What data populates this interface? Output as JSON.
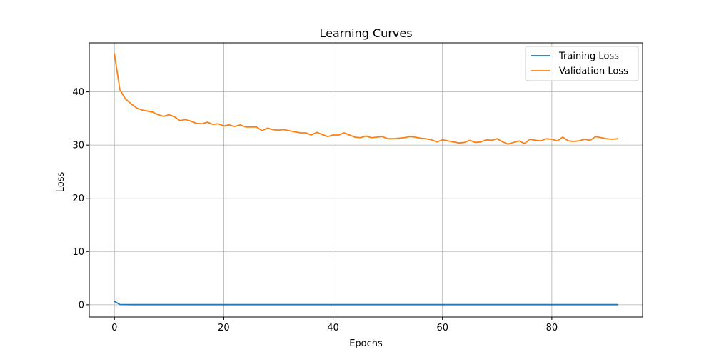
{
  "chart_data": {
    "type": "line",
    "title": "Learning Curves",
    "xlabel": "Epochs",
    "ylabel": "Loss",
    "xlim": [
      -4.6,
      96.6
    ],
    "ylim": [
      -2.3,
      49.2
    ],
    "xticks": [
      0,
      20,
      40,
      60,
      80
    ],
    "yticks": [
      0,
      10,
      20,
      30,
      40
    ],
    "grid": true,
    "legend_position": "top-right",
    "series": [
      {
        "name": "Training Loss",
        "color": "#1f77b4",
        "x": [
          0,
          1,
          2,
          3,
          4,
          5,
          6,
          7,
          8,
          9,
          10,
          11,
          12,
          13,
          14,
          15,
          16,
          17,
          18,
          19,
          20,
          21,
          22,
          23,
          24,
          25,
          26,
          27,
          28,
          29,
          30,
          31,
          32,
          33,
          34,
          35,
          36,
          37,
          38,
          39,
          40,
          41,
          42,
          43,
          44,
          45,
          46,
          47,
          48,
          49,
          50,
          51,
          52,
          53,
          54,
          55,
          56,
          57,
          58,
          59,
          60,
          61,
          62,
          63,
          64,
          65,
          66,
          67,
          68,
          69,
          70,
          71,
          72,
          73,
          74,
          75,
          76,
          77,
          78,
          79,
          80,
          81,
          82,
          83,
          84,
          85,
          86,
          87,
          88,
          89,
          90,
          91,
          92
        ],
        "y": [
          0.65,
          0.05,
          0.03,
          0.02,
          0.02,
          0.02,
          0.02,
          0.02,
          0.02,
          0.02,
          0.02,
          0.02,
          0.02,
          0.02,
          0.02,
          0.02,
          0.02,
          0.02,
          0.02,
          0.02,
          0.02,
          0.02,
          0.02,
          0.02,
          0.02,
          0.02,
          0.02,
          0.02,
          0.02,
          0.02,
          0.02,
          0.02,
          0.02,
          0.02,
          0.02,
          0.02,
          0.02,
          0.02,
          0.02,
          0.02,
          0.02,
          0.02,
          0.02,
          0.02,
          0.02,
          0.02,
          0.02,
          0.02,
          0.02,
          0.02,
          0.02,
          0.02,
          0.02,
          0.02,
          0.02,
          0.02,
          0.02,
          0.02,
          0.02,
          0.02,
          0.02,
          0.02,
          0.02,
          0.02,
          0.02,
          0.02,
          0.02,
          0.02,
          0.02,
          0.02,
          0.02,
          0.02,
          0.02,
          0.02,
          0.02,
          0.02,
          0.02,
          0.02,
          0.02,
          0.02,
          0.02,
          0.02,
          0.02,
          0.02,
          0.02,
          0.02,
          0.02,
          0.02,
          0.02,
          0.02,
          0.02,
          0.02,
          0.02
        ]
      },
      {
        "name": "Validation Loss",
        "color": "#ff7f0e",
        "x": [
          0,
          1,
          2,
          3,
          4,
          5,
          6,
          7,
          8,
          9,
          10,
          11,
          12,
          13,
          14,
          15,
          16,
          17,
          18,
          19,
          20,
          21,
          22,
          23,
          24,
          25,
          26,
          27,
          28,
          29,
          30,
          31,
          32,
          33,
          34,
          35,
          36,
          37,
          38,
          39,
          40,
          41,
          42,
          43,
          44,
          45,
          46,
          47,
          48,
          49,
          50,
          51,
          52,
          53,
          54,
          55,
          56,
          57,
          58,
          59,
          60,
          61,
          62,
          63,
          64,
          65,
          66,
          67,
          68,
          69,
          70,
          71,
          72,
          73,
          74,
          75,
          76,
          77,
          78,
          79,
          80,
          81,
          82,
          83,
          84,
          85,
          86,
          87,
          88,
          89,
          90,
          91,
          92
        ],
        "y": [
          47.1,
          40.4,
          38.7,
          37.8,
          37.0,
          36.6,
          36.4,
          36.2,
          35.7,
          35.4,
          35.7,
          35.3,
          34.6,
          34.8,
          34.5,
          34.1,
          34.0,
          34.3,
          33.9,
          34.0,
          33.6,
          33.8,
          33.5,
          33.8,
          33.4,
          33.4,
          33.4,
          32.7,
          33.2,
          32.9,
          32.8,
          32.9,
          32.7,
          32.5,
          32.3,
          32.3,
          31.9,
          32.4,
          32.0,
          31.6,
          31.9,
          31.9,
          32.3,
          31.9,
          31.5,
          31.4,
          31.7,
          31.4,
          31.5,
          31.6,
          31.2,
          31.2,
          31.3,
          31.4,
          31.6,
          31.5,
          31.3,
          31.2,
          31.0,
          30.6,
          31.0,
          30.8,
          30.6,
          30.4,
          30.5,
          30.9,
          30.5,
          30.6,
          31.0,
          30.9,
          31.2,
          30.6,
          30.2,
          30.5,
          30.8,
          30.3,
          31.1,
          30.9,
          30.8,
          31.2,
          31.1,
          30.8,
          31.5,
          30.8,
          30.7,
          30.8,
          31.1,
          30.9,
          31.6,
          31.4,
          31.2,
          31.1,
          31.2
        ]
      }
    ]
  }
}
